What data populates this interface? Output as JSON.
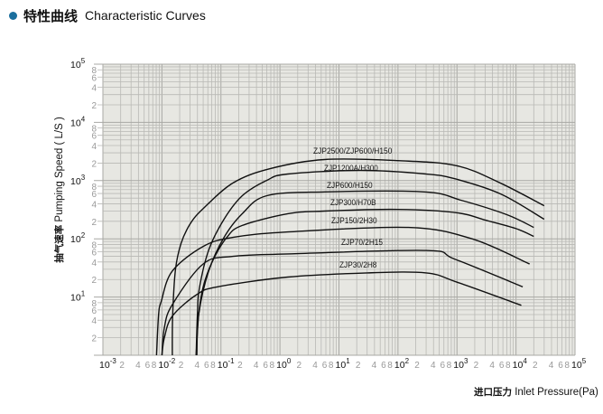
{
  "header": {
    "title_cn": "特性曲线",
    "title_en": "Characteristic Curves",
    "bullet_color": "#1b6f9e"
  },
  "chart_data": {
    "type": "line",
    "title": "",
    "xlabel_cn": "进口压力",
    "xlabel": "Inlet Pressure(Pa)",
    "ylabel_cn": "抽气速率",
    "ylabel": "Pumping Speed ( L/S )",
    "x_scale": "log",
    "y_scale": "log",
    "xlim": [
      0.001,
      100000
    ],
    "ylim": [
      1,
      100000
    ],
    "x_decade_exponents": [
      "-3",
      "-2",
      "-1",
      "0",
      "1",
      "2",
      "3",
      "4",
      "5"
    ],
    "y_decade_exponents": [
      "1",
      "2",
      "3",
      "4",
      "5"
    ],
    "x_minor_tick_labels": [
      "2",
      "4",
      "6",
      "8"
    ],
    "y_minor_tick_labels": [
      "2",
      "4",
      "6",
      "8"
    ],
    "decade_base": "10",
    "grid": true,
    "colors": {
      "background": "#e7e7e2",
      "grid": "#b9b9b5",
      "line": "#111111"
    },
    "series": [
      {
        "name": "ZJP2500/ZJP600/H150",
        "points": [
          [
            0.015,
            1
          ],
          [
            0.0152,
            5
          ],
          [
            0.017,
            30
          ],
          [
            0.021,
            82
          ],
          [
            0.03,
            180
          ],
          [
            0.05,
            330
          ],
          [
            0.16,
            910
          ],
          [
            0.67,
            1600
          ],
          [
            5.7,
            2300
          ],
          [
            100,
            2200
          ],
          [
            1000,
            1800
          ],
          [
            5500,
            900
          ],
          [
            30000,
            370
          ]
        ]
      },
      {
        "name": "ZJP1200A/H300",
        "points": [
          [
            0.038,
            1
          ],
          [
            0.04,
            5
          ],
          [
            0.043,
            14
          ],
          [
            0.062,
            64
          ],
          [
            0.113,
            217
          ],
          [
            0.23,
            550
          ],
          [
            0.6,
            1010
          ],
          [
            1.36,
            1300
          ],
          [
            23,
            1500
          ],
          [
            300,
            1300
          ],
          [
            900,
            1080
          ],
          [
            5500,
            590
          ],
          [
            30000,
            217
          ]
        ]
      },
      {
        "name": "ZJP600/H150",
        "points": [
          [
            0.039,
            1
          ],
          [
            0.042,
            5
          ],
          [
            0.062,
            28
          ],
          [
            0.113,
            106
          ],
          [
            0.23,
            270
          ],
          [
            0.6,
            550
          ],
          [
            5.7,
            640
          ],
          [
            280,
            640
          ],
          [
            1170,
            460
          ],
          [
            7000,
            260
          ],
          [
            20000,
            157
          ]
        ]
      },
      {
        "name": "ZJP300/H70B",
        "points": [
          [
            0.038,
            1
          ],
          [
            0.042,
            5
          ],
          [
            0.05,
            15
          ],
          [
            0.071,
            40
          ],
          [
            0.126,
            106
          ],
          [
            0.23,
            170
          ],
          [
            1.36,
            270
          ],
          [
            5.7,
            300
          ],
          [
            100,
            320
          ],
          [
            1000,
            280
          ],
          [
            3000,
            210
          ],
          [
            10000,
            150
          ],
          [
            20000,
            110
          ]
        ]
      },
      {
        "name": "ZJP150/2H30",
        "points": [
          [
            0.0081,
            1
          ],
          [
            0.0088,
            5
          ],
          [
            0.0098,
            8.6
          ],
          [
            0.015,
            28
          ],
          [
            0.05,
            74
          ],
          [
            0.16,
            106
          ],
          [
            1.36,
            131
          ],
          [
            150,
            157
          ],
          [
            1800,
            100
          ],
          [
            17000,
            37
          ]
        ]
      },
      {
        "name": "ZJP70/2H15",
        "points": [
          [
            0.01,
            1
          ],
          [
            0.011,
            3
          ],
          [
            0.015,
            7.4
          ],
          [
            0.05,
            37
          ],
          [
            0.16,
            50
          ],
          [
            1.36,
            55
          ],
          [
            300,
            63
          ],
          [
            900,
            45
          ],
          [
            13000,
            15
          ]
        ]
      },
      {
        "name": "ZJP30/2H8",
        "points": [
          [
            0.01,
            1
          ],
          [
            0.011,
            2
          ],
          [
            0.015,
            4.7
          ],
          [
            0.039,
            11
          ],
          [
            0.088,
            15
          ],
          [
            1.36,
            22
          ],
          [
            30,
            26
          ],
          [
            300,
            26
          ],
          [
            1000,
            18
          ],
          [
            12300,
            7.2
          ]
        ]
      }
    ]
  }
}
